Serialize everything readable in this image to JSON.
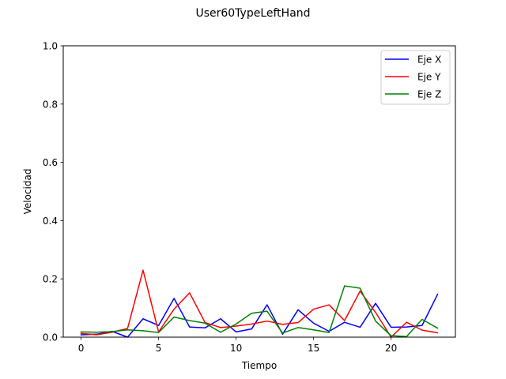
{
  "chart_data": {
    "type": "line",
    "title": "User60TypeLeftHand",
    "xlabel": "Tiempo",
    "ylabel": "Velocidad",
    "xlim": [
      -1.15,
      24.15
    ],
    "ylim": [
      0,
      1.0
    ],
    "xticks": [
      0,
      5,
      10,
      15,
      20
    ],
    "yticks": [
      0.0,
      0.2,
      0.4,
      0.6,
      0.8,
      1.0
    ],
    "xtick_labels": [
      "0",
      "5",
      "10",
      "15",
      "20"
    ],
    "ytick_labels": [
      "0.0",
      "0.2",
      "0.4",
      "0.6",
      "0.8",
      "1.0"
    ],
    "grid": false,
    "legend_position": "top-right",
    "x": [
      0,
      1,
      2,
      3,
      4,
      5,
      6,
      7,
      8,
      9,
      10,
      11,
      12,
      13,
      14,
      15,
      16,
      17,
      18,
      19,
      20,
      21,
      22,
      23
    ],
    "series": [
      {
        "name": "Eje X",
        "color": "#0000ff",
        "values": [
          0.008,
          0.01,
          0.02,
          0.0,
          0.063,
          0.04,
          0.133,
          0.035,
          0.032,
          0.063,
          0.018,
          0.028,
          0.111,
          0.01,
          0.094,
          0.048,
          0.02,
          0.051,
          0.034,
          0.116,
          0.034,
          0.035,
          0.04,
          0.147
        ]
      },
      {
        "name": "Eje Y",
        "color": "#ff0000",
        "values": [
          0.013,
          0.008,
          0.017,
          0.03,
          0.23,
          0.018,
          0.096,
          0.152,
          0.05,
          0.033,
          0.038,
          0.045,
          0.055,
          0.044,
          0.05,
          0.096,
          0.111,
          0.057,
          0.158,
          0.085,
          0.0,
          0.051,
          0.024,
          0.015
        ]
      },
      {
        "name": "Eje Z",
        "color": "#008000",
        "values": [
          0.018,
          0.017,
          0.019,
          0.025,
          0.022,
          0.016,
          0.069,
          0.057,
          0.048,
          0.017,
          0.045,
          0.082,
          0.089,
          0.014,
          0.033,
          0.025,
          0.016,
          0.176,
          0.168,
          0.055,
          0.005,
          0.002,
          0.061,
          0.031
        ]
      }
    ]
  }
}
